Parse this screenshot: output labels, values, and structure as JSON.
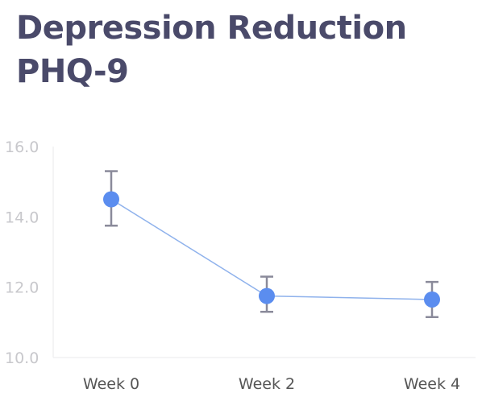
{
  "chart_data": {
    "type": "line",
    "title": [
      "Depression Reduction",
      "PHQ-9"
    ],
    "categories": [
      "Week 0",
      "Week 2",
      "Week 4"
    ],
    "series": [
      {
        "values": [
          14.5,
          11.75,
          11.65
        ],
        "error_low": [
          13.75,
          11.3,
          11.15
        ],
        "error_high": [
          15.3,
          12.3,
          12.15
        ]
      }
    ],
    "ylim": [
      10.0,
      16.0
    ],
    "yticks": [
      "10.0",
      "12.0",
      "14.0",
      "16.0"
    ],
    "ytick_values": [
      10,
      12,
      14,
      16
    ],
    "grid": false,
    "colors": {
      "line": "#8fb2ec",
      "marker": "#5b8def",
      "error_bar": "#8a8a9a",
      "axis": "#f0f0f2",
      "title": "#4a4a6a"
    }
  }
}
